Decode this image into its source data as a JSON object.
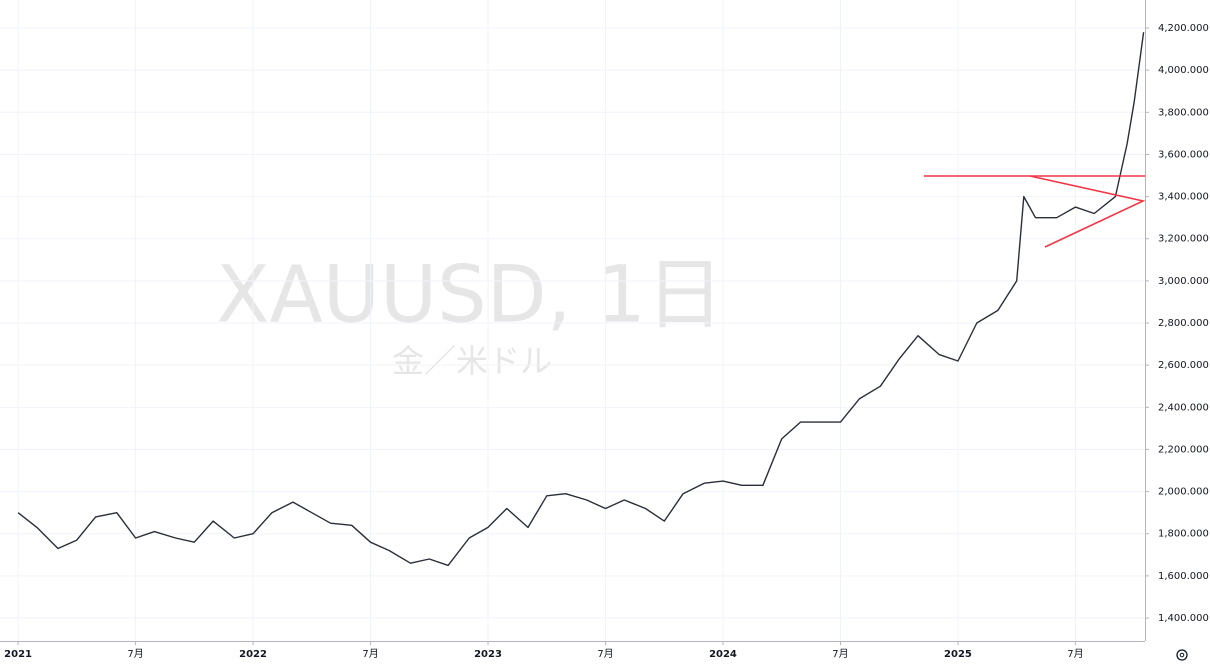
{
  "chart_data": {
    "type": "line",
    "watermark": "XAUUSD, 1日",
    "watermark_subtitle": "金／米ドル",
    "x": [
      2021.0,
      2021.08,
      2021.17,
      2021.25,
      2021.33,
      2021.42,
      2021.5,
      2021.58,
      2021.67,
      2021.75,
      2021.83,
      2021.92,
      2022.0,
      2022.08,
      2022.17,
      2022.25,
      2022.33,
      2022.42,
      2022.5,
      2022.58,
      2022.67,
      2022.75,
      2022.83,
      2022.92,
      2023.0,
      2023.08,
      2023.17,
      2023.25,
      2023.33,
      2023.42,
      2023.5,
      2023.58,
      2023.67,
      2023.75,
      2023.83,
      2023.92,
      2024.0,
      2024.08,
      2024.17,
      2024.25,
      2024.33,
      2024.42,
      2024.5,
      2024.58,
      2024.67,
      2024.75,
      2024.83,
      2024.92,
      2025.0,
      2025.08,
      2025.17,
      2025.25,
      2025.28,
      2025.33,
      2025.42,
      2025.5,
      2025.58,
      2025.67,
      2025.72,
      2025.75,
      2025.79
    ],
    "series": [
      {
        "name": "XAUUSD",
        "color": "#2a2e39",
        "values": [
          1900,
          1830,
          1730,
          1770,
          1880,
          1900,
          1780,
          1810,
          1780,
          1760,
          1860,
          1780,
          1800,
          1900,
          1950,
          1900,
          1850,
          1840,
          1760,
          1720,
          1660,
          1680,
          1650,
          1780,
          1830,
          1920,
          1830,
          1980,
          1990,
          1960,
          1920,
          1960,
          1920,
          1860,
          1990,
          2040,
          2050,
          2030,
          2030,
          2250,
          2330,
          2330,
          2330,
          2440,
          2500,
          2630,
          2740,
          2650,
          2620,
          2800,
          2860,
          3000,
          3400,
          3300,
          3300,
          3350,
          3320,
          3400,
          3650,
          3850,
          4180
        ]
      }
    ],
    "xlim": [
      2020.923,
      2025.796
    ],
    "xticks": [
      {
        "value": 2021.0,
        "label": "2021"
      },
      {
        "value": 2021.5,
        "label": "7月"
      },
      {
        "value": 2022.0,
        "label": "2022"
      },
      {
        "value": 2022.5,
        "label": "7月"
      },
      {
        "value": 2023.0,
        "label": "2023"
      },
      {
        "value": 2023.5,
        "label": "7月"
      },
      {
        "value": 2024.0,
        "label": "2024"
      },
      {
        "value": 2024.5,
        "label": "7月"
      },
      {
        "value": 2025.0,
        "label": "2025"
      },
      {
        "value": 2025.5,
        "label": "7月"
      }
    ],
    "ylim": [
      1291,
      4333
    ],
    "yticks": [
      {
        "value": 1400,
        "label": "1,400.000"
      },
      {
        "value": 1600,
        "label": "1,600.000"
      },
      {
        "value": 1800,
        "label": "1,800.000"
      },
      {
        "value": 2000,
        "label": "2,000.000"
      },
      {
        "value": 2200,
        "label": "2,200.000"
      },
      {
        "value": 2400,
        "label": "2,400.000"
      },
      {
        "value": 2600,
        "label": "2,600.000"
      },
      {
        "value": 2800,
        "label": "2,800.000"
      },
      {
        "value": 3000,
        "label": "3,000.000"
      },
      {
        "value": 3200,
        "label": "3,200.000"
      },
      {
        "value": 3400,
        "label": "3,400.000"
      },
      {
        "value": 3600,
        "label": "3,600.000"
      },
      {
        "value": 3800,
        "label": "3,800.000"
      },
      {
        "value": 4000,
        "label": "4,000.000"
      },
      {
        "value": 4200,
        "label": "4,200.000"
      }
    ],
    "grid": true
  }
}
